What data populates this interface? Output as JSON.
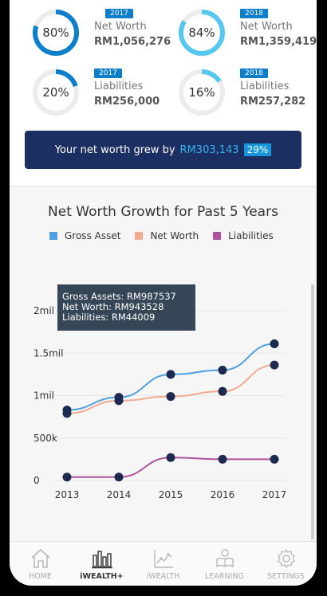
{
  "kpis": [
    {
      "pct": "80%",
      "value_pct": 80,
      "year": "2017",
      "label": "Net Worth",
      "amount": "RM1,056,276",
      "color": "#0d7ec9"
    },
    {
      "pct": "84%",
      "value_pct": 84,
      "year": "2018",
      "label": "Net Worth",
      "amount": "RM1,359,419",
      "color": "#56c7ee"
    },
    {
      "pct": "20%",
      "value_pct": 20,
      "year": "2017",
      "label": "Liabilities",
      "amount": "RM256,000",
      "color": "#0d7ec9"
    },
    {
      "pct": "16%",
      "value_pct": 16,
      "year": "2018",
      "label": "Liabilities",
      "amount": "RM257,282",
      "color": "#56c7ee"
    }
  ],
  "banner": {
    "text": "Your net worth grew by",
    "amount": "RM303,143",
    "badge": "29%"
  },
  "chart_title": "Net Worth Growth for Past 5 Years",
  "legend": [
    {
      "name": "Gross Asset",
      "color": "#4f9fe0"
    },
    {
      "name": "Net Worth",
      "color": "#f2a991"
    },
    {
      "name": "Liabilities",
      "color": "#b0529b"
    }
  ],
  "tooltip": {
    "line1": "Gross Assets: RM987537",
    "line2": "Net Worth: RM943528",
    "line3": "Liabilities: RM44009"
  },
  "chart_data": {
    "type": "line",
    "x": [
      "2013",
      "2014",
      "2015",
      "2016",
      "2017"
    ],
    "y_ticks": [
      "0",
      "500k",
      "1mil",
      "1.5mil",
      "2mil"
    ],
    "y_tick_values": [
      0,
      500000,
      1000000,
      1500000,
      2000000
    ],
    "ylim": [
      0,
      2000000
    ],
    "series": [
      {
        "name": "Gross Asset",
        "color": "#4f9fe0",
        "values": [
          830000,
          980000,
          1250000,
          1300000,
          1610000
        ]
      },
      {
        "name": "Net Worth",
        "color": "#f2a991",
        "values": [
          790000,
          940000,
          990000,
          1050000,
          1360000
        ]
      },
      {
        "name": "Liabilities",
        "color": "#b0529b",
        "values": [
          40000,
          40000,
          270000,
          250000,
          250000
        ]
      }
    ]
  },
  "tabs": [
    {
      "label": "HOME",
      "icon": "home-icon"
    },
    {
      "label": "iWEALTH+",
      "icon": "bar-chart-icon"
    },
    {
      "label": "iWEALTH",
      "icon": "line-chart-icon"
    },
    {
      "label": "LEARNING",
      "icon": "reader-icon"
    },
    {
      "label": "SETTINGS",
      "icon": "gear-icon"
    }
  ]
}
